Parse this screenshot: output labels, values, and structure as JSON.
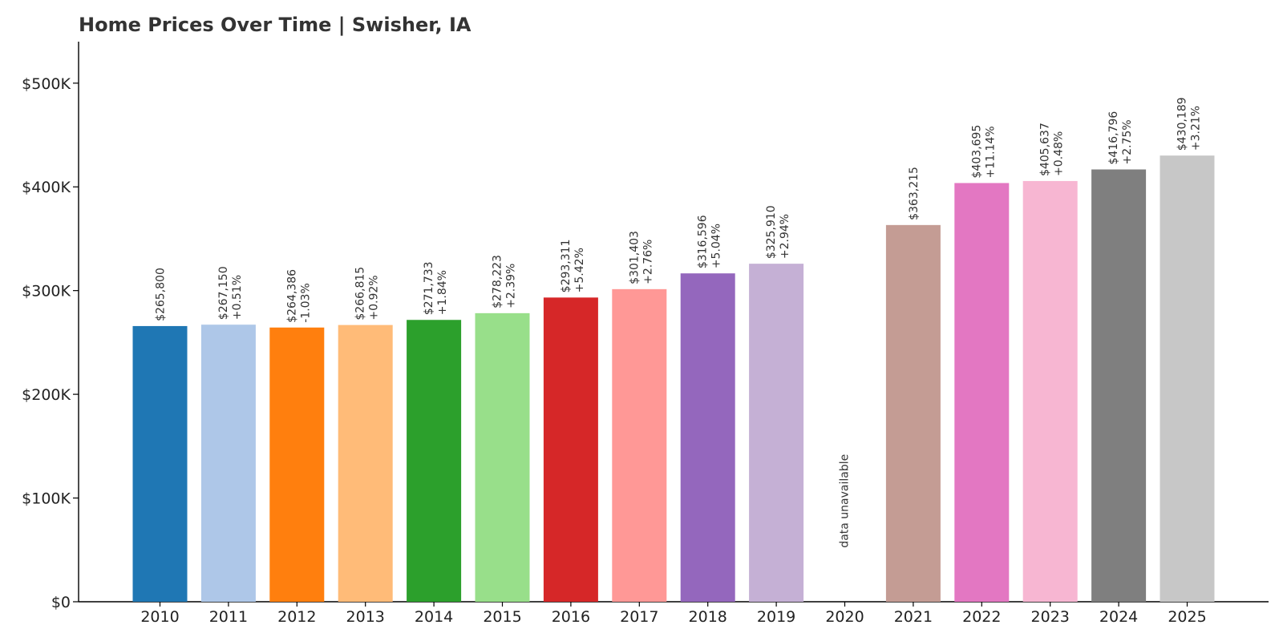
{
  "chart_data": {
    "type": "bar",
    "title": "Home Prices Over Time | Swisher, IA",
    "xlabel": "",
    "ylabel": "",
    "ylim": [
      0,
      540000
    ],
    "y_ticks": [
      0,
      100000,
      200000,
      300000,
      400000,
      500000
    ],
    "y_tick_labels": [
      "$0",
      "$100K",
      "$200K",
      "$300K",
      "$400K",
      "$500K"
    ],
    "grid": false,
    "categories": [
      "2010",
      "2011",
      "2012",
      "2013",
      "2014",
      "2015",
      "2016",
      "2017",
      "2018",
      "2019",
      "2020",
      "2021",
      "2022",
      "2023",
      "2024",
      "2025"
    ],
    "values": [
      265800,
      267150,
      264386,
      266815,
      271733,
      278223,
      293311,
      301403,
      316596,
      325910,
      null,
      363215,
      403695,
      405637,
      416796,
      430189
    ],
    "value_labels": [
      "$265,800",
      "$267,150",
      "$264,386",
      "$266,815",
      "$271,733",
      "$278,223",
      "$293,311",
      "$301,403",
      "$316,596",
      "$325,910",
      "",
      "$363,215",
      "$403,695",
      "$405,637",
      "$416,796",
      "$430,189"
    ],
    "change_labels": [
      "",
      "+0.51%",
      "-1.03%",
      "+0.92%",
      "+1.84%",
      "+2.39%",
      "+5.42%",
      "+2.76%",
      "+5.04%",
      "+2.94%",
      "",
      "",
      "+11.14%",
      "+0.48%",
      "+2.75%",
      "+3.21%"
    ],
    "missing_label": "data unavailable",
    "colors": [
      "#1f77b4",
      "#aec7e8",
      "#ff7f0e",
      "#ffbb78",
      "#2ca02c",
      "#98df8a",
      "#d62728",
      "#ff9896",
      "#9467bd",
      "#c5b0d5",
      "#8c564b",
      "#c49c94",
      "#e377c2",
      "#f7b6d2",
      "#7f7f7f",
      "#c7c7c7"
    ]
  }
}
